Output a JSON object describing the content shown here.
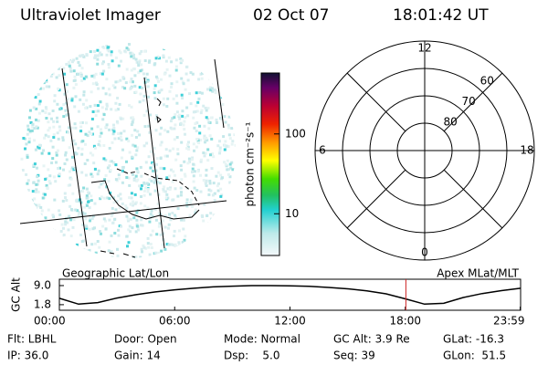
{
  "header": {
    "instrument": "Ultraviolet Imager",
    "date": "02 Oct 07",
    "time": "18:01:42 UT"
  },
  "colorbar": {
    "label": "photon cm⁻²s⁻¹",
    "range": [
      3,
      580
    ],
    "log": true,
    "ticks": [
      10,
      100
    ]
  },
  "polar": {
    "mlt_ticks": [
      12,
      18,
      6,
      0
    ],
    "lat_rings": [
      60,
      70,
      80
    ]
  },
  "panel_labels": {
    "left": "Geographic Lat/Lon",
    "right": "Apex MLat/MLT"
  },
  "chart_data": {
    "type": "line",
    "ylabel": "GC Alt",
    "color": "#000000",
    "x": [
      0,
      1,
      2,
      3,
      4,
      5,
      6,
      7,
      8,
      9,
      10,
      11,
      12,
      13,
      14,
      15,
      16,
      17,
      18,
      19,
      20,
      21,
      22,
      23,
      24
    ],
    "values": [
      4.2,
      2.0,
      2.6,
      4.3,
      5.6,
      6.6,
      7.4,
      8.0,
      8.5,
      8.8,
      9.0,
      9.0,
      8.9,
      8.7,
      8.3,
      7.8,
      7.0,
      5.9,
      4.0,
      2.0,
      2.3,
      4.5,
      6.0,
      7.1,
      8.0
    ],
    "xlim": [
      0,
      24
    ],
    "ylim": [
      -0.3,
      11.4
    ],
    "xticks": [
      {
        "value": 0,
        "label": "00:00"
      },
      {
        "value": 6,
        "label": "06:00"
      },
      {
        "value": 12,
        "label": "12:00"
      },
      {
        "value": 18,
        "label": "18:00"
      },
      {
        "value": 23.98,
        "label": "23:59"
      }
    ],
    "yticks": [
      {
        "value": 9,
        "label": "9.0"
      },
      1.8
    ],
    "marker_x": 18.03,
    "marker_color": "#cc2222"
  },
  "status": [
    "Flt: LBHL",
    "Door: Open",
    "Mode: Normal",
    "GC Alt: 3.9 Re",
    "GLat: -16.3",
    "IP: 36.0",
    "Gain: 14",
    "Dsp:    5.0",
    "Seq: 39",
    "GLon:  51.5"
  ]
}
